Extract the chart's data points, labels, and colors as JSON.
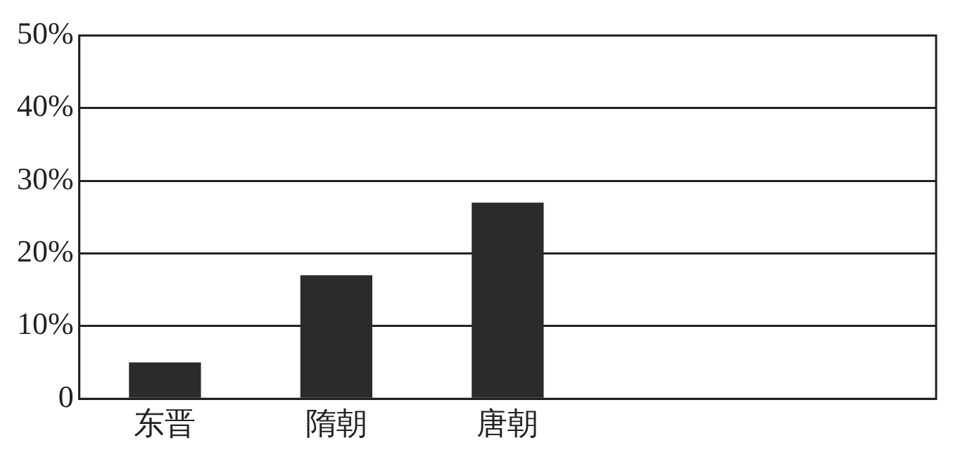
{
  "chart_data": {
    "type": "bar",
    "categories": [
      "东晋",
      "隋朝",
      "唐朝",
      null,
      null
    ],
    "values": [
      5,
      17,
      27,
      null,
      null
    ],
    "color": "#2b2b2b",
    "ylim": [
      0,
      50
    ],
    "yticks": [
      0,
      {
        "value": 10,
        "label": "10%"
      },
      {
        "value": 20,
        "label": "20%"
      },
      {
        "value": 30,
        "label": "30%"
      },
      {
        "value": 40,
        "label": "40%"
      },
      {
        "value": 50,
        "label": "50%"
      }
    ],
    "grid": "y"
  }
}
